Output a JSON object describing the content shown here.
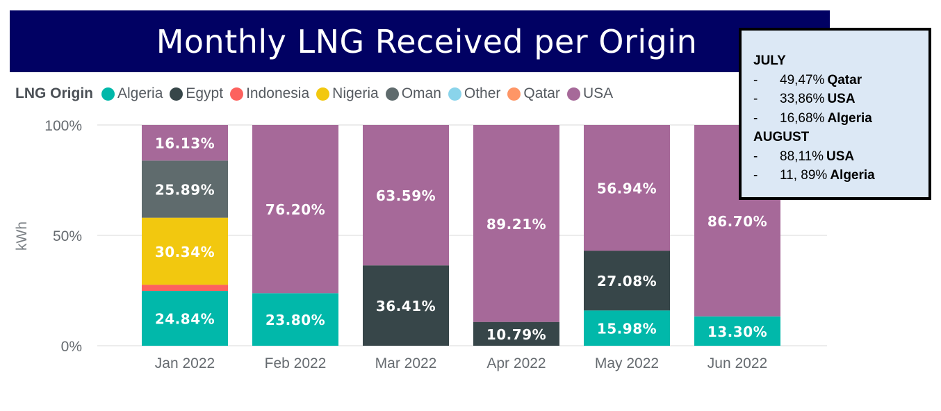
{
  "chart_data": {
    "type": "bar",
    "stacked": true,
    "normalized": true,
    "title": "Monthly LNG Received per Origin",
    "ylabel": "kWh",
    "xlabel": "",
    "ylim": [
      0,
      100
    ],
    "yticks": [
      "0%",
      "50%",
      "100%"
    ],
    "grid": true,
    "legend": {
      "title": "LNG Origin",
      "placement": "top-left",
      "entries": [
        "Algeria",
        "Egypt",
        "Indonesia",
        "Nigeria",
        "Oman",
        "Other",
        "Qatar",
        "USA"
      ]
    },
    "categories": [
      "Jan 2022",
      "Feb 2022",
      "Mar 2022",
      "Apr 2022",
      "May 2022",
      "Jun 2022"
    ],
    "series": [
      {
        "name": "Algeria",
        "color": "#01b8aa",
        "values": [
          24.84,
          23.8,
          0,
          0,
          15.98,
          13.3
        ],
        "labels": [
          "24.84%",
          "23.80%",
          "",
          "",
          "15.98%",
          "13.30%"
        ]
      },
      {
        "name": "Egypt",
        "color": "#374649",
        "values": [
          0,
          0,
          36.41,
          10.79,
          27.08,
          0
        ],
        "labels": [
          "",
          "",
          "36.41%",
          "10.79%",
          "27.08%",
          ""
        ]
      },
      {
        "name": "Indonesia",
        "color": "#fd625e",
        "values": [
          2.8,
          0,
          0,
          0,
          0,
          0
        ],
        "labels": [
          "",
          "",
          "",
          "",
          "",
          ""
        ]
      },
      {
        "name": "Nigeria",
        "color": "#f2c80f",
        "values": [
          30.34,
          0,
          0,
          0,
          0,
          0
        ],
        "labels": [
          "30.34%",
          "",
          "",
          "",
          "",
          ""
        ]
      },
      {
        "name": "Oman",
        "color": "#5f6b6d",
        "values": [
          25.89,
          0,
          0,
          0,
          0,
          0
        ],
        "labels": [
          "25.89%",
          "",
          "",
          "",
          "",
          ""
        ]
      },
      {
        "name": "Other",
        "color": "#8ad4eb",
        "values": [
          0,
          0,
          0,
          0,
          0,
          0
        ],
        "labels": [
          "",
          "",
          "",
          "",
          "",
          ""
        ]
      },
      {
        "name": "Qatar",
        "color": "#fe9666",
        "values": [
          0,
          0,
          0,
          0,
          0,
          0
        ],
        "labels": [
          "",
          "",
          "",
          "",
          "",
          ""
        ]
      },
      {
        "name": "USA",
        "color": "#a66999",
        "values": [
          16.13,
          76.2,
          63.59,
          89.21,
          56.94,
          86.7
        ],
        "labels": [
          "16.13%",
          "76.20%",
          "63.59%",
          "89.21%",
          "56.94%",
          "86.70%"
        ]
      }
    ]
  },
  "note": {
    "sections": [
      {
        "heading": "JULY",
        "lines": [
          {
            "dash": "-",
            "value": "49,47%",
            "label": "Qatar"
          },
          {
            "dash": "-",
            "value": "33,86%",
            "label": "USA"
          },
          {
            "dash": "-",
            "value": "16,68%",
            "label": "Algeria"
          }
        ]
      },
      {
        "heading": "AUGUST",
        "lines": [
          {
            "dash": "-",
            "value": "88,11%",
            "label": "USA"
          },
          {
            "dash": "-",
            "value": "11, 89%",
            "label": "Algeria"
          }
        ]
      }
    ]
  },
  "colors": {
    "title_banner": "#010163",
    "note_background": "#dce8f5",
    "axis_text": "#666b70",
    "gridline": "#e6e6e6"
  }
}
